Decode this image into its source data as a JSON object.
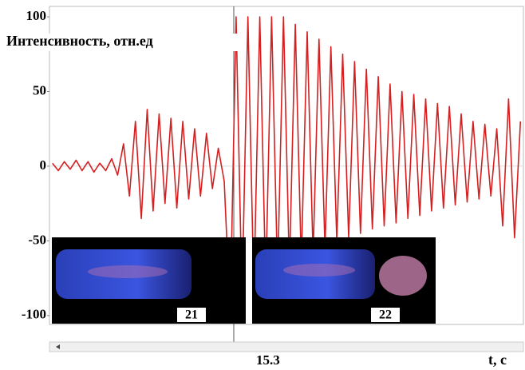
{
  "chart_data": {
    "type": "line",
    "ylabel": "Интенсивность, отн.ед",
    "xlabel": "t, c",
    "categories": [
      null,
      null,
      null,
      null,
      null,
      null,
      null,
      null,
      null,
      null,
      null,
      null,
      null,
      null,
      null,
      null,
      null,
      null,
      null,
      null,
      null,
      null,
      null,
      null,
      null,
      null,
      null,
      null,
      null,
      null,
      null,
      "15.3",
      null,
      null,
      null,
      null,
      null,
      null,
      null,
      null,
      null,
      null,
      null,
      null,
      null,
      null,
      null,
      null,
      null,
      null,
      null,
      null,
      null,
      null,
      null,
      null,
      null,
      null,
      null,
      null,
      null,
      null,
      null,
      null,
      null,
      null,
      null,
      null,
      null,
      null,
      null,
      null,
      null,
      null,
      null,
      null,
      null,
      null,
      null,
      null
    ],
    "values": [
      2,
      -3,
      3,
      -2,
      4,
      -3,
      3,
      -4,
      2,
      -3,
      5,
      -6,
      15,
      -20,
      30,
      -35,
      38,
      -30,
      35,
      -25,
      32,
      -28,
      30,
      -22,
      25,
      -20,
      22,
      -15,
      12,
      -10,
      -100,
      100,
      -90,
      100,
      -85,
      100,
      -80,
      100,
      -75,
      100,
      -70,
      95,
      -65,
      90,
      -60,
      85,
      -55,
      80,
      -50,
      75,
      -48,
      70,
      -45,
      65,
      -42,
      60,
      -40,
      55,
      -38,
      50,
      -35,
      48,
      -33,
      45,
      -30,
      42,
      -28,
      40,
      -26,
      35,
      -24,
      30,
      -22,
      28,
      -20,
      25,
      -40,
      45,
      -48,
      30
    ],
    "color": "#d42020",
    "ylim": [
      -106,
      107
    ],
    "yticks": [
      100,
      50,
      0,
      -50,
      -100
    ],
    "frames": [
      {
        "label": "21"
      },
      {
        "label": "22"
      }
    ]
  }
}
